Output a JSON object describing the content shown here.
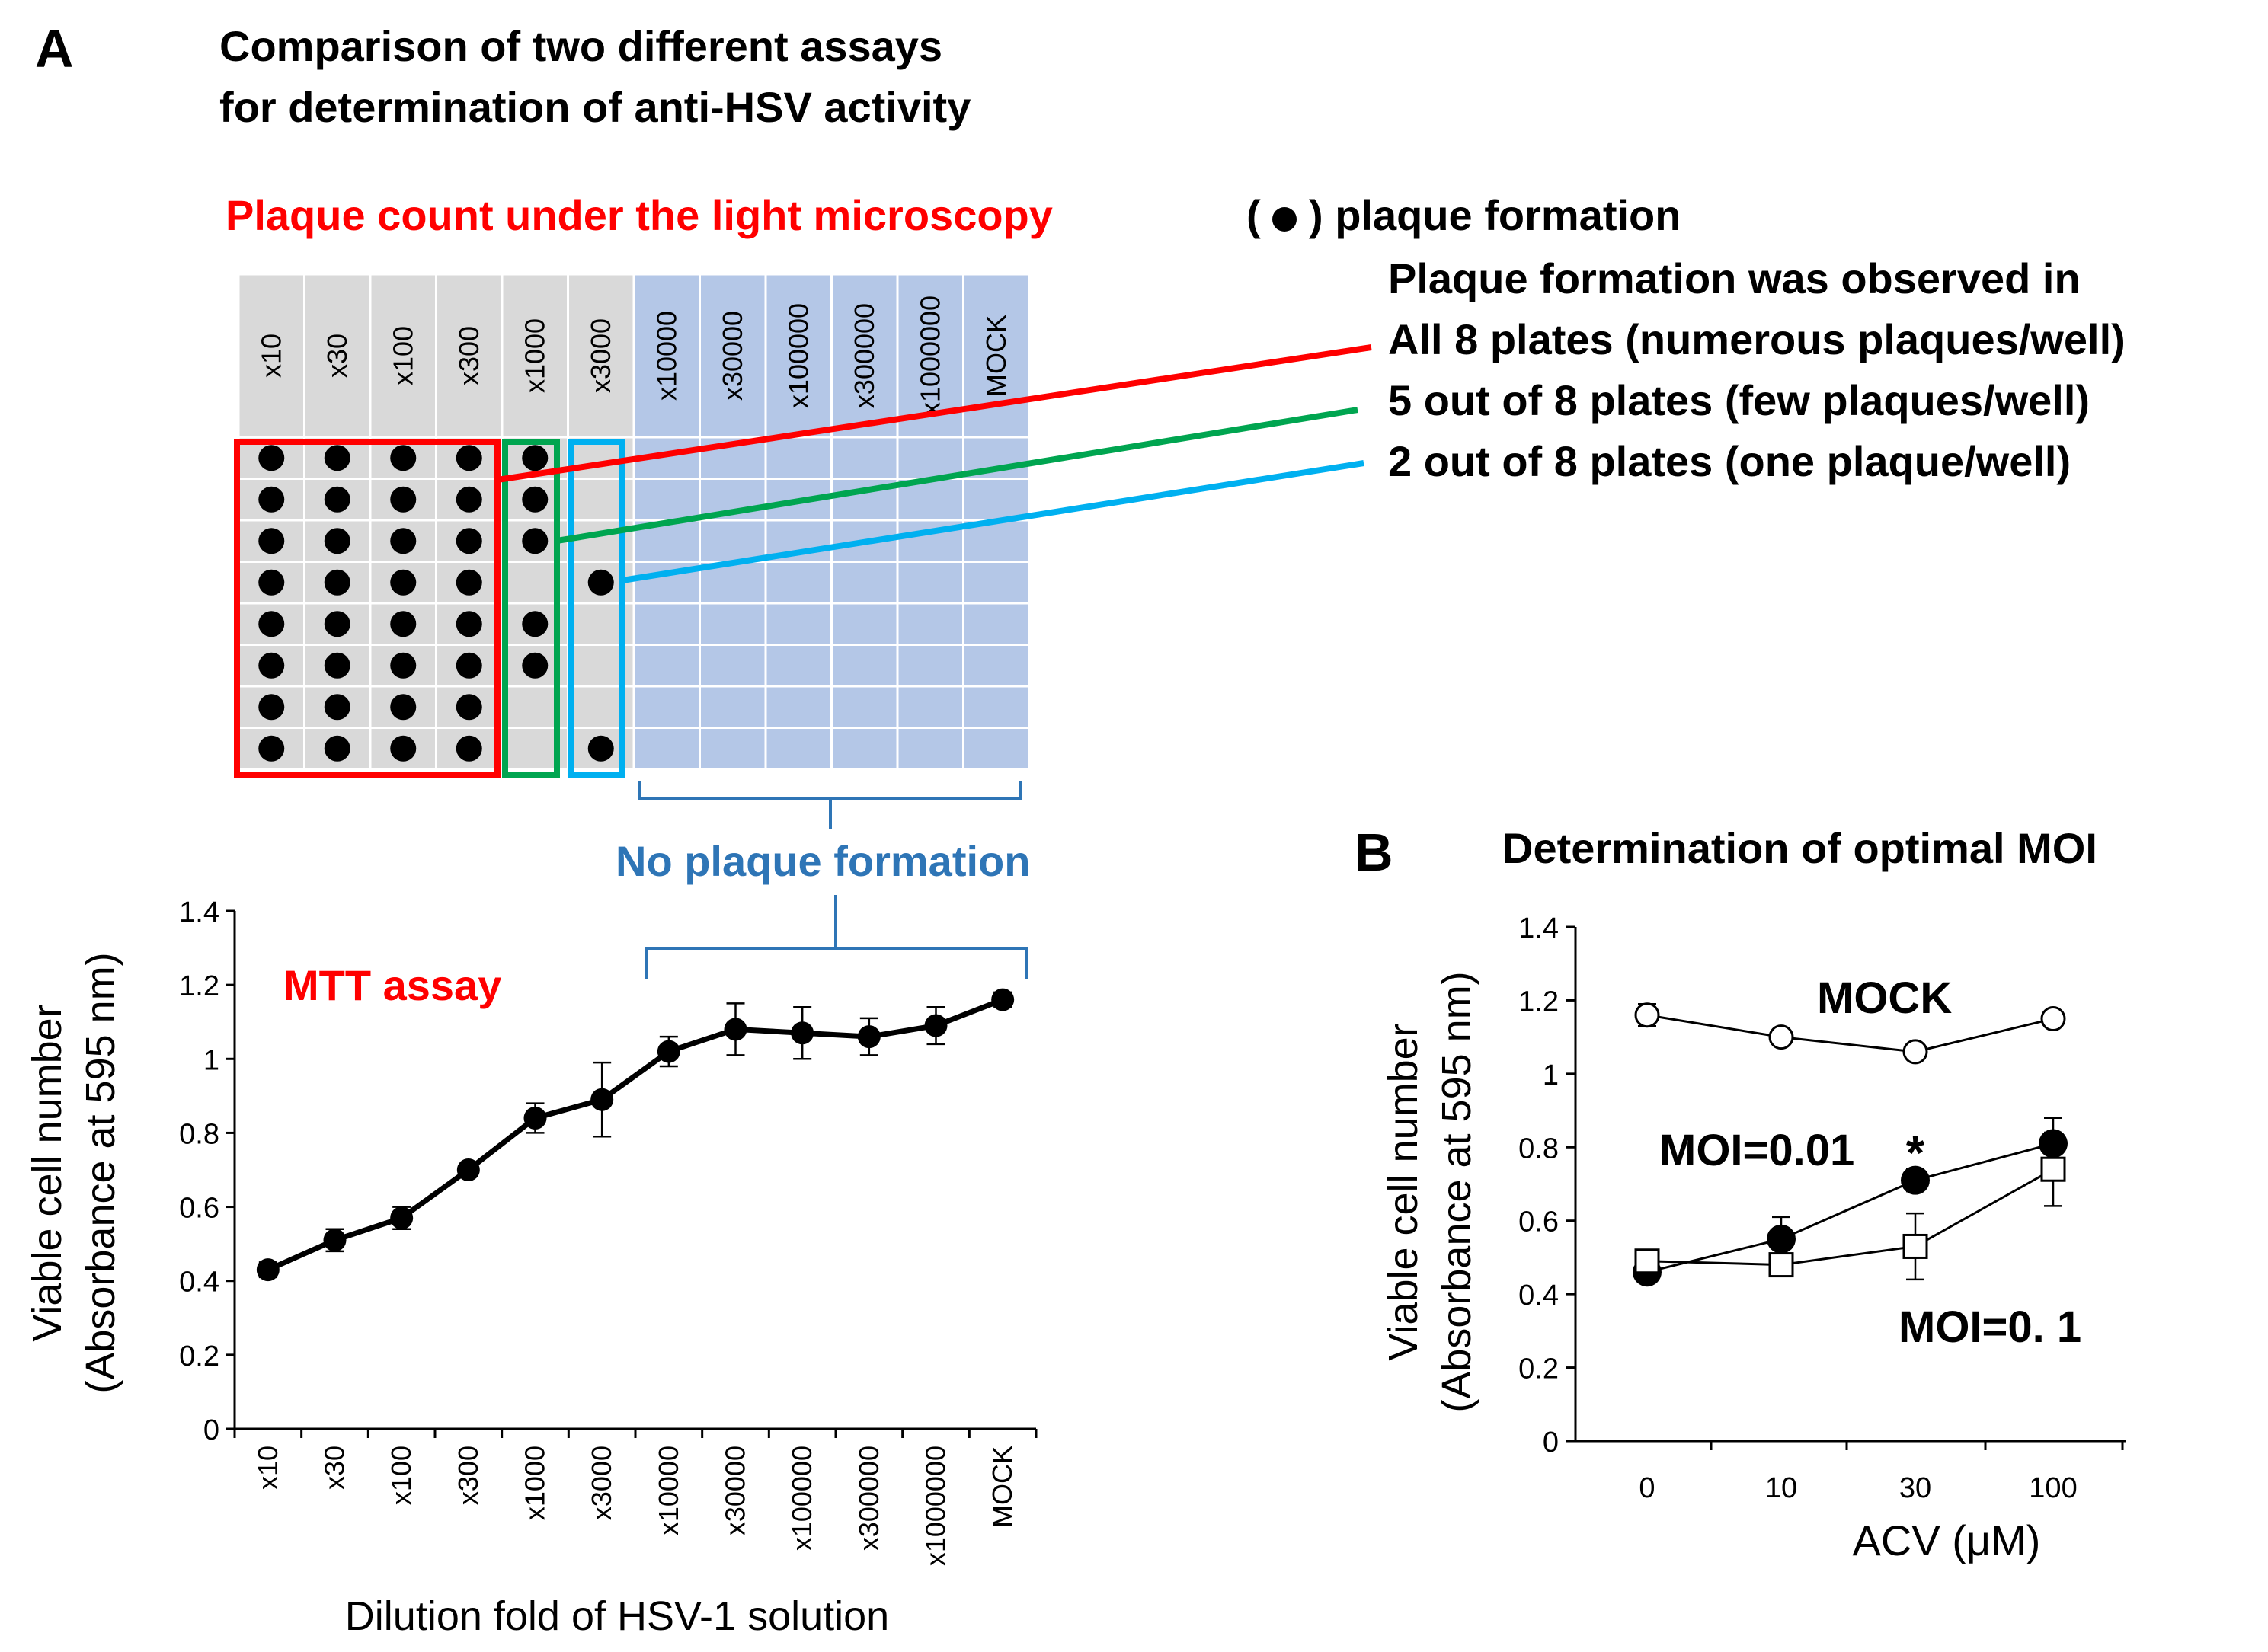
{
  "panel_a": {
    "letter": "A",
    "title_line1": "Comparison of two different assays",
    "title_line2": "for determination of anti-HSV activity",
    "plaque_label": "Plaque count under the light microscopy",
    "legend_open": "(",
    "legend_close": ") plaque formation",
    "observation_title1": "Plaque formation was observed in",
    "observation_title2": "All 8 plates (numerous plaques/well)",
    "observation_5of8": "5 out of 8 plates (few plaques/well)",
    "observation_2of8": "2 out of 8 plates (one plaque/well)",
    "no_plaque_label": "No plaque formation",
    "mtt_label": "MTT assay",
    "colors": {
      "red": "#ff0000",
      "green": "#00a550",
      "cyan": "#00b0f0",
      "blue_text": "#2e75b6",
      "grid_gray": "#d9d9d9",
      "grid_blue": "#b4c7e7"
    }
  },
  "plate": {
    "columns": [
      "x10",
      "x30",
      "x100",
      "x300",
      "x1000",
      "x3000",
      "x10000",
      "x30000",
      "x100000",
      "x300000",
      "x1000000",
      "MOCK"
    ],
    "rows": 8,
    "plaques": [
      [
        true,
        true,
        true,
        true,
        true,
        true,
        true,
        true
      ],
      [
        true,
        true,
        true,
        true,
        true,
        true,
        true,
        true
      ],
      [
        true,
        true,
        true,
        true,
        true,
        true,
        true,
        true
      ],
      [
        true,
        true,
        true,
        true,
        true,
        true,
        true,
        true
      ],
      [
        true,
        true,
        true,
        false,
        true,
        true,
        false,
        false
      ],
      [
        false,
        false,
        false,
        true,
        false,
        false,
        false,
        true
      ],
      [
        false,
        false,
        false,
        false,
        false,
        false,
        false,
        false
      ],
      [
        false,
        false,
        false,
        false,
        false,
        false,
        false,
        false
      ],
      [
        false,
        false,
        false,
        false,
        false,
        false,
        false,
        false
      ],
      [
        false,
        false,
        false,
        false,
        false,
        false,
        false,
        false
      ],
      [
        false,
        false,
        false,
        false,
        false,
        false,
        false,
        false
      ],
      [
        false,
        false,
        false,
        false,
        false,
        false,
        false,
        false
      ]
    ]
  },
  "chart_data": [
    {
      "type": "line",
      "title": "MTT assay",
      "xlabel": "Dilution  fold of HSV-1  solution",
      "ylabel_line1": "Viable cell number",
      "ylabel_line2": "(Absorbance at 595 nm)",
      "ylim": [
        0,
        1.4
      ],
      "yticks": [
        "0",
        "0.2",
        "0.4",
        "0.6",
        "0.8",
        "1",
        "1.2",
        "1.4"
      ],
      "ytick_values": [
        0,
        0.2,
        0.4,
        0.6,
        0.8,
        1.0,
        1.2,
        1.4
      ],
      "categories": [
        "x10",
        "x30",
        "x100",
        "x300",
        "x1000",
        "x3000",
        "x10000",
        "x30000",
        "x100000",
        "x300000",
        "x1000000",
        "MOCK"
      ],
      "values": [
        0.43,
        0.51,
        0.57,
        0.7,
        0.84,
        0.89,
        1.02,
        1.08,
        1.07,
        1.06,
        1.09,
        1.16
      ],
      "errors": [
        0.02,
        0.03,
        0.03,
        0.01,
        0.04,
        0.1,
        0.04,
        0.07,
        0.07,
        0.05,
        0.05,
        0.02
      ]
    },
    {
      "type": "line",
      "panel_letter": "B",
      "title": "Determination of optimal MOI",
      "xlabel": "ACV (μM)",
      "ylabel_line1": "Viable cell number",
      "ylabel_line2": "(Absorbance at 595 nm)",
      "ylim": [
        0,
        1.4
      ],
      "yticks": [
        "0",
        "0.2",
        "0.4",
        "0.6",
        "0.8",
        "1",
        "1.2",
        "1.4"
      ],
      "ytick_values": [
        0,
        0.2,
        0.4,
        0.6,
        0.8,
        1.0,
        1.2,
        1.4
      ],
      "categories": [
        "0",
        "10",
        "30",
        "100"
      ],
      "significance_marker": "*",
      "series": [
        {
          "name": "MOCK",
          "marker": "open-circle",
          "values": [
            1.16,
            1.1,
            1.06,
            1.15
          ],
          "errors": [
            0.03,
            0.01,
            0.01,
            0.01
          ]
        },
        {
          "name": "MOI=0.01",
          "marker": "filled-circle",
          "values": [
            0.46,
            0.55,
            0.71,
            0.81
          ],
          "errors": [
            0.02,
            0.06,
            0.03,
            0.07
          ]
        },
        {
          "name": "MOI=0. 1",
          "marker": "open-square",
          "values": [
            0.49,
            0.48,
            0.53,
            0.74
          ],
          "errors": [
            0.02,
            0.02,
            0.09,
            0.1
          ]
        }
      ]
    }
  ]
}
